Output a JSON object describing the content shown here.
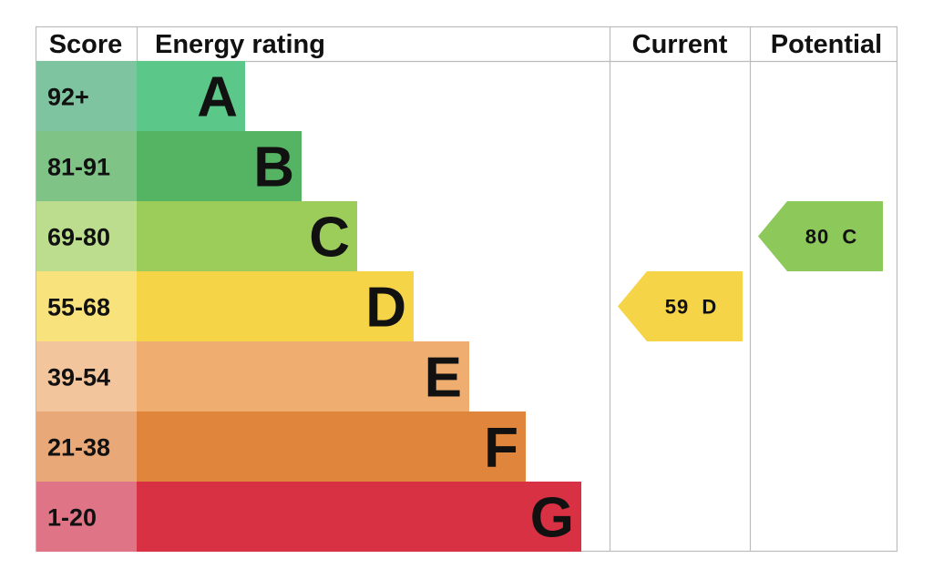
{
  "chart_data": {
    "type": "bar",
    "headers": {
      "score": "Score",
      "rating": "Energy rating",
      "current": "Current",
      "potential": "Potential"
    },
    "bands": [
      {
        "letter": "A",
        "range": "92+",
        "color": "#5bc88a",
        "score_color": "#7fc4a0"
      },
      {
        "letter": "B",
        "range": "81-91",
        "color": "#55b463",
        "score_color": "#80c386"
      },
      {
        "letter": "C",
        "range": "69-80",
        "color": "#9ccc5a",
        "score_color": "#bcdd8e"
      },
      {
        "letter": "D",
        "range": "55-68",
        "color": "#f6d448",
        "score_color": "#f8e27c"
      },
      {
        "letter": "E",
        "range": "39-54",
        "color": "#efad70",
        "score_color": "#f3c59d"
      },
      {
        "letter": "F",
        "range": "21-38",
        "color": "#e0853c",
        "score_color": "#e8a877"
      },
      {
        "letter": "G",
        "range": "1-20",
        "color": "#d73143",
        "score_color": "#e07487"
      }
    ],
    "current": {
      "value": 59,
      "band": "D",
      "label": "59  D",
      "color": "#f6d448"
    },
    "potential": {
      "value": 80,
      "band": "C",
      "label": "80  C",
      "color": "#8cc85a"
    }
  }
}
